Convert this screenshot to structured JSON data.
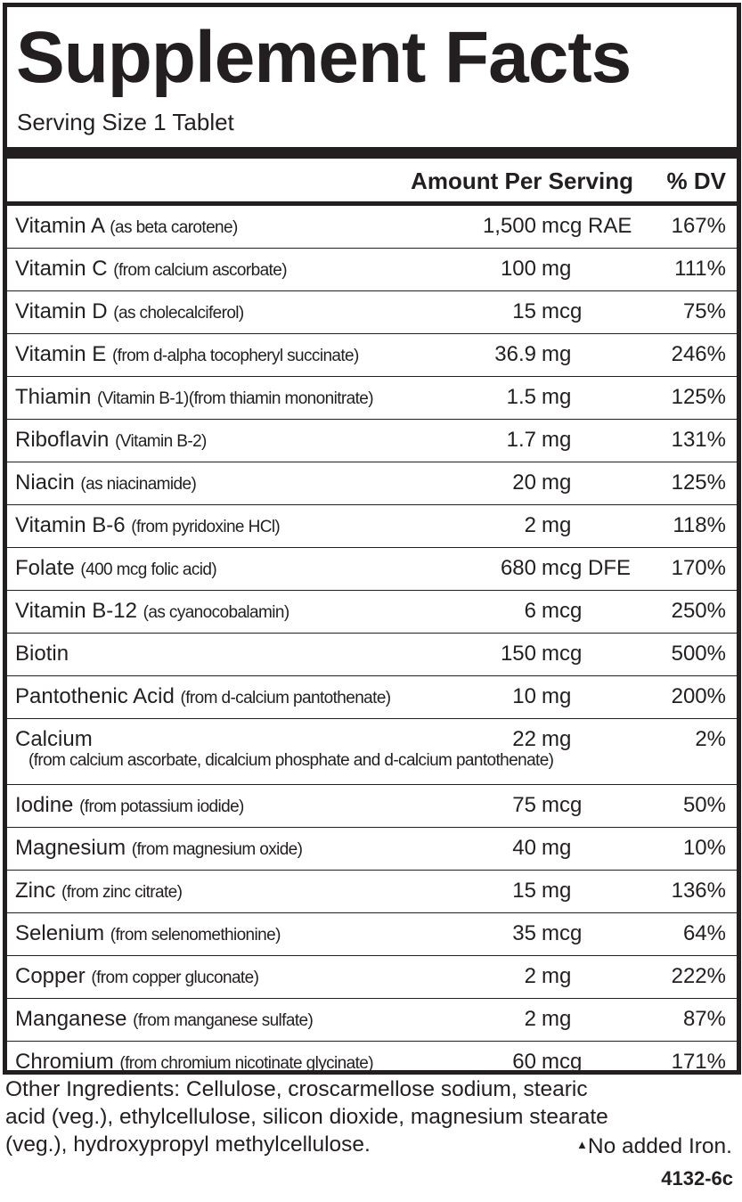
{
  "title": "Supplement Facts",
  "serving_size": "Serving Size 1 Tablet",
  "headers": {
    "amount": "Amount Per Serving",
    "dv": "% DV"
  },
  "nutrients": [
    {
      "name": "Vitamin A",
      "source": "(as beta carotene)",
      "amount": "1,500",
      "unit": "mcg RAE",
      "dv": "167%"
    },
    {
      "name": "Vitamin C",
      "source": "(from calcium ascorbate)",
      "amount": "100",
      "unit": "mg",
      "dv": "111%"
    },
    {
      "name": "Vitamin D",
      "source": "(as cholecalciferol)",
      "amount": "15",
      "unit": "mcg",
      "dv": "75%"
    },
    {
      "name": "Vitamin E",
      "source": "(from d-alpha tocopheryl succinate)",
      "amount": "36.9",
      "unit": "mg",
      "dv": "246%"
    },
    {
      "name": "Thiamin",
      "source": "(Vitamin B-1)(from thiamin mononitrate)",
      "amount": "1.5",
      "unit": "mg",
      "dv": "125%"
    },
    {
      "name": "Riboflavin",
      "source": "(Vitamin B-2)",
      "amount": "1.7",
      "unit": "mg",
      "dv": "131%"
    },
    {
      "name": "Niacin",
      "source": "(as niacinamide)",
      "amount": "20",
      "unit": "mg",
      "dv": "125%"
    },
    {
      "name": "Vitamin B-6",
      "source": "(from pyridoxine HCl)",
      "amount": "2",
      "unit": "mg",
      "dv": "118%"
    },
    {
      "name": "Folate",
      "source": "(400 mcg folic acid)",
      "amount": "680",
      "unit": "mcg DFE",
      "dv": "170%"
    },
    {
      "name": "Vitamin B-12",
      "source": "(as cyanocobalamin)",
      "amount": "6",
      "unit": "mcg",
      "dv": "250%"
    },
    {
      "name": "Biotin",
      "source": "",
      "amount": "150",
      "unit": "mcg",
      "dv": "500%"
    },
    {
      "name": "Pantothenic Acid",
      "source": "(from d-calcium pantothenate)",
      "amount": "10",
      "unit": "mg",
      "dv": "200%"
    },
    {
      "name": "Calcium",
      "source": "(from calcium ascorbate, dicalcium phosphate and d-calcium pantothenate)",
      "amount": "22",
      "unit": "mg",
      "dv": "2%"
    },
    {
      "name": "Iodine",
      "source": "(from potassium iodide)",
      "amount": "75",
      "unit": "mcg",
      "dv": "50%"
    },
    {
      "name": "Magnesium",
      "source": "(from magnesium oxide)",
      "amount": "40",
      "unit": "mg",
      "dv": "10%"
    },
    {
      "name": "Zinc",
      "source": "(from zinc citrate)",
      "amount": "15",
      "unit": "mg",
      "dv": "136%"
    },
    {
      "name": "Selenium",
      "source": "(from selenomethionine)",
      "amount": "35",
      "unit": "mcg",
      "dv": "64%"
    },
    {
      "name": "Copper",
      "source": "(from copper gluconate)",
      "amount": "2",
      "unit": "mg",
      "dv": "222%"
    },
    {
      "name": "Manganese",
      "source": "(from manganese sulfate)",
      "amount": "2",
      "unit": "mg",
      "dv": "87%"
    },
    {
      "name": "Chromium",
      "source": "(from chromium nicotinate glycinate)",
      "amount": "60",
      "unit": "mcg",
      "dv": "171%"
    }
  ],
  "other_ingredients": {
    "line1": "Other Ingredients:  Cellulose, croscarmellose sodium, stearic",
    "line2": "acid (veg.), ethylcellulose, silicon dioxide, magnesium stearate",
    "line3": "(veg.), hydroxypropyl methylcellulose.",
    "no_iron_mark": "▲",
    "no_iron": "No added Iron."
  },
  "code": "4132-6c"
}
